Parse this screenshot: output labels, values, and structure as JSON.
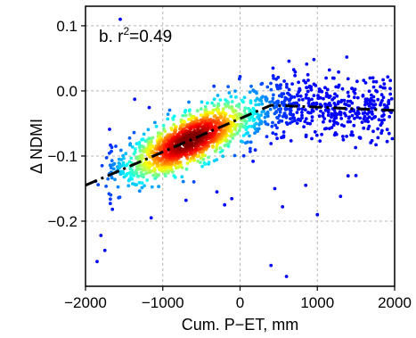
{
  "chart_data": {
    "type": "scatter",
    "xlabel": "Cum. P−ET, mm",
    "ylabel": "Δ NDMI",
    "annotation": {
      "prefix": "b. r",
      "sup": "2",
      "suffix": "=0.49"
    },
    "xlim": [
      -2000,
      2000
    ],
    "ylim": [
      -0.3,
      0.13
    ],
    "xticks": [
      -2000,
      -1000,
      0,
      1000,
      2000
    ],
    "xtick_labels": [
      "−2000",
      "−1000",
      "0",
      "1000",
      "2000"
    ],
    "yticks": [
      0.1,
      0.0,
      -0.1,
      -0.2
    ],
    "ytick_labels": [
      "0.1",
      "0.0",
      "−0.1",
      "−0.2"
    ],
    "grid": true,
    "colormap": "jet (point density)",
    "fit_line": {
      "style": "dash-dot",
      "color": "#000000",
      "breakpoint_x": 400,
      "points": [
        [
          -2000,
          -0.145
        ],
        [
          400,
          -0.022
        ],
        [
          2000,
          -0.03
        ]
      ]
    },
    "density_core": {
      "center_x": -650,
      "center_y": -0.075
    },
    "outliers": [
      [
        -1550,
        0.11
      ],
      [
        -1850,
        -0.262
      ],
      [
        -1800,
        -0.222
      ],
      [
        -1750,
        -0.245
      ],
      [
        -700,
        -0.168
      ],
      [
        -200,
        -0.175
      ],
      [
        450,
        -0.15
      ],
      [
        550,
        -0.178
      ],
      [
        850,
        -0.145
      ],
      [
        1000,
        -0.19
      ],
      [
        400,
        -0.268
      ],
      [
        600,
        -0.285
      ],
      [
        -1150,
        -0.195
      ],
      [
        -300,
        -0.155
      ],
      [
        1300,
        -0.162
      ],
      [
        1500,
        -0.13
      ]
    ]
  }
}
